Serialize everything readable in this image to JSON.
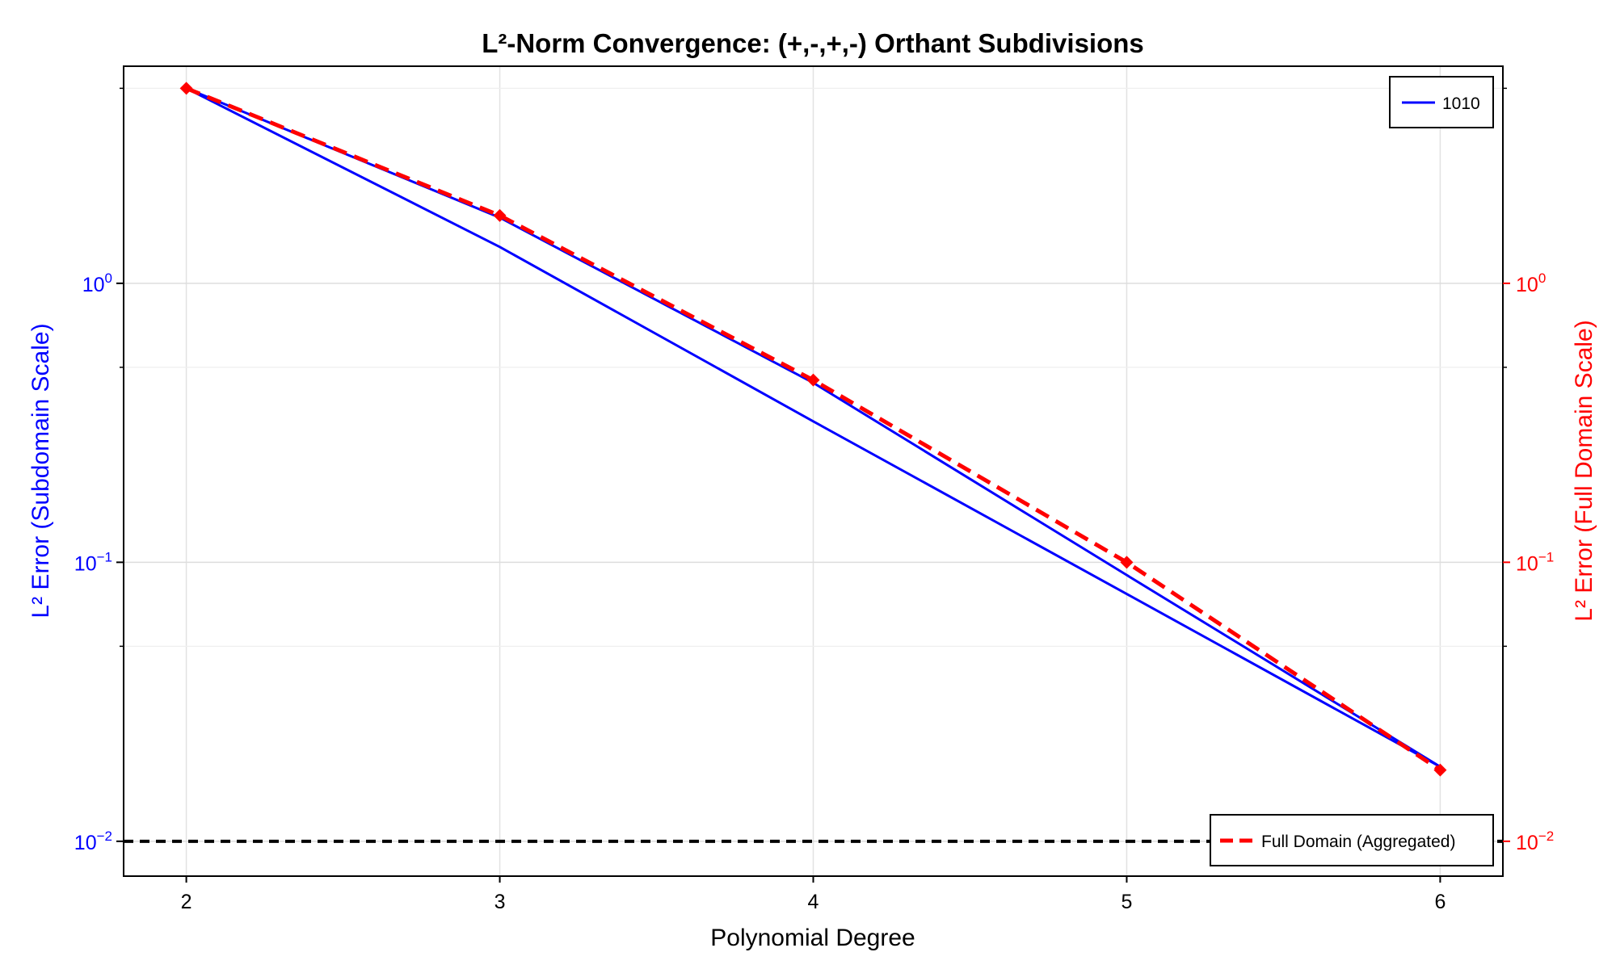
{
  "chart_data": {
    "type": "line",
    "title": "L²-Norm Convergence: (+,-,+,-) Orthant Subdivisions",
    "xlabel": "Polynomial Degree",
    "ylabel_left": "L² Error (Subdomain Scale)",
    "ylabel_right": "L² Error (Full Domain Scale)",
    "x_ticks": [
      "2",
      "3",
      "4",
      "5",
      "6"
    ],
    "xlim": [
      1.8,
      6.2
    ],
    "ylim": [
      0.0075,
      6.0
    ],
    "yscale": "log",
    "y_ticks": [
      {
        "value": 1,
        "base": "10",
        "exp": "0"
      },
      {
        "value": 0.1,
        "base": "10",
        "exp": "−1"
      },
      {
        "value": 0.01,
        "base": "10",
        "exp": "−2"
      }
    ],
    "grid": true,
    "series": [
      {
        "name": "1010",
        "color": "#0000ff",
        "style": "solid",
        "axis": "left",
        "x": [
          2,
          3,
          4,
          5,
          6
        ],
        "y": [
          5.0,
          1.35,
          0.32,
          0.077,
          0.0185
        ]
      },
      {
        "color": "#0000ff",
        "style": "solid",
        "axis": "left",
        "x": [
          2,
          3,
          4,
          5,
          6
        ],
        "y": [
          5.0,
          1.72,
          0.44,
          0.09,
          0.0185
        ]
      },
      {
        "name": "Full Domain (Aggregated)",
        "color": "#ff0000",
        "style": "dashed",
        "marker": "diamond",
        "axis": "right",
        "x": [
          2,
          3,
          4,
          5,
          6
        ],
        "y": [
          5.0,
          1.75,
          0.45,
          0.1,
          0.018
        ]
      }
    ],
    "reference_line": {
      "y": 0.01,
      "color": "#000000",
      "style": "dashed"
    },
    "legend_left": {
      "position": "top-right",
      "entries": [
        "1010"
      ]
    },
    "legend_right": {
      "position": "bottom-right",
      "entries": [
        "Full Domain (Aggregated)"
      ]
    },
    "colors": {
      "left_axis": "#0000ff",
      "right_axis": "#ff0000"
    }
  }
}
